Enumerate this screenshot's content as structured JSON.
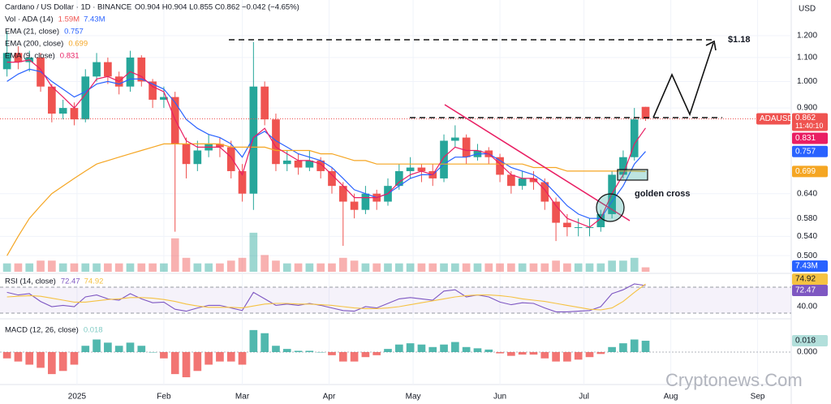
{
  "header": {
    "symbol": "Cardano / US Dollar · 1D · BINANCE",
    "ohlc": "O0.904 H0.904 L0.855 C0.862 −0.042 (−4.65%)",
    "currency": "USD",
    "ticker": "ADAUSD",
    "countdown": "11:40:10",
    "watermark": "Cryptonews.Com",
    "annotations": [
      "$1.18",
      "golden cross"
    ]
  },
  "chart_data": [
    {
      "type": "candlestick",
      "log_scale": true,
      "up_color": "#26a69a",
      "down_color": "#ef5350",
      "x": [
        6,
        10,
        14,
        18,
        22,
        26,
        30,
        34,
        38,
        42,
        46,
        50,
        54,
        58,
        62,
        66,
        70,
        74,
        78,
        82,
        86,
        90,
        94,
        98,
        102,
        106,
        110,
        114,
        118,
        122,
        126,
        130,
        134,
        138,
        142,
        146,
        150,
        154,
        158,
        162,
        166,
        170,
        174,
        178,
        182,
        186,
        190,
        194,
        198,
        202,
        206,
        210,
        214,
        218,
        222,
        226,
        230,
        234
      ],
      "open": [
        1.05,
        1.12,
        1.08,
        1.1,
        0.98,
        0.88,
        0.9,
        0.86,
        1.02,
        1.08,
        1.02,
        0.98,
        1.1,
        1.0,
        0.93,
        0.94,
        0.78,
        0.72,
        0.76,
        0.78,
        0.77,
        0.7,
        0.64,
        0.98,
        0.86,
        0.72,
        0.73,
        0.71,
        0.73,
        0.7,
        0.66,
        0.62,
        0.6,
        0.64,
        0.62,
        0.66,
        0.7,
        0.71,
        0.7,
        0.68,
        0.79,
        0.8,
        0.74,
        0.76,
        0.74,
        0.69,
        0.66,
        0.68,
        0.67,
        0.62,
        0.57,
        0.56,
        0.56,
        0.56,
        0.59,
        0.69,
        0.74,
        0.904
      ],
      "high": [
        1.22,
        1.15,
        1.13,
        1.12,
        0.99,
        0.93,
        0.92,
        1.05,
        1.12,
        1.1,
        1.04,
        1.13,
        1.11,
        1.01,
        0.98,
        0.96,
        0.8,
        0.79,
        0.81,
        0.8,
        0.79,
        0.72,
        1.17,
        1.0,
        0.88,
        0.76,
        0.75,
        0.76,
        0.74,
        0.71,
        0.67,
        0.64,
        0.66,
        0.65,
        0.68,
        0.72,
        0.74,
        0.72,
        0.72,
        0.81,
        0.84,
        0.81,
        0.78,
        0.77,
        0.75,
        0.7,
        0.7,
        0.7,
        0.68,
        0.63,
        0.59,
        0.58,
        0.58,
        0.6,
        0.7,
        0.76,
        0.9,
        0.904
      ],
      "low": [
        1.02,
        1.05,
        1.04,
        0.96,
        0.85,
        0.86,
        0.84,
        0.85,
        1.0,
        0.99,
        0.95,
        0.96,
        0.98,
        0.9,
        0.9,
        0.55,
        0.68,
        0.7,
        0.74,
        0.74,
        0.68,
        0.62,
        0.6,
        0.84,
        0.7,
        0.7,
        0.69,
        0.7,
        0.68,
        0.64,
        0.52,
        0.58,
        0.59,
        0.6,
        0.61,
        0.65,
        0.68,
        0.67,
        0.66,
        0.67,
        0.77,
        0.72,
        0.73,
        0.72,
        0.67,
        0.64,
        0.65,
        0.65,
        0.6,
        0.53,
        0.54,
        0.54,
        0.54,
        0.55,
        0.58,
        0.68,
        0.73,
        0.855
      ],
      "close": [
        1.12,
        1.08,
        1.1,
        0.98,
        0.88,
        0.9,
        0.86,
        1.02,
        1.08,
        1.02,
        0.98,
        1.1,
        1.0,
        0.93,
        0.94,
        0.78,
        0.72,
        0.76,
        0.78,
        0.77,
        0.7,
        0.64,
        0.98,
        0.86,
        0.72,
        0.73,
        0.71,
        0.73,
        0.7,
        0.66,
        0.62,
        0.6,
        0.64,
        0.62,
        0.66,
        0.7,
        0.71,
        0.7,
        0.68,
        0.79,
        0.8,
        0.74,
        0.76,
        0.74,
        0.69,
        0.66,
        0.68,
        0.67,
        0.62,
        0.57,
        0.56,
        0.56,
        0.56,
        0.59,
        0.69,
        0.74,
        0.86,
        0.862
      ],
      "series": [
        {
          "name": "EMA (21, close)",
          "color": "#2962ff",
          "values": [
            1.0,
            1.03,
            1.05,
            1.04,
            1.0,
            0.97,
            0.94,
            0.96,
            0.99,
            1.0,
            0.99,
            1.01,
            1.01,
            0.99,
            0.97,
            0.92,
            0.86,
            0.83,
            0.81,
            0.8,
            0.78,
            0.74,
            0.8,
            0.82,
            0.79,
            0.77,
            0.75,
            0.74,
            0.73,
            0.71,
            0.68,
            0.65,
            0.64,
            0.63,
            0.64,
            0.66,
            0.68,
            0.69,
            0.69,
            0.72,
            0.74,
            0.74,
            0.75,
            0.75,
            0.73,
            0.71,
            0.7,
            0.69,
            0.67,
            0.64,
            0.61,
            0.59,
            0.58,
            0.58,
            0.62,
            0.66,
            0.72,
            0.757
          ]
        },
        {
          "name": "EMA (200, close)",
          "color": "#f5a623",
          "values": [
            0.5,
            0.54,
            0.58,
            0.61,
            0.64,
            0.66,
            0.68,
            0.7,
            0.72,
            0.73,
            0.74,
            0.75,
            0.76,
            0.77,
            0.78,
            0.78,
            0.78,
            0.78,
            0.78,
            0.78,
            0.77,
            0.77,
            0.77,
            0.77,
            0.76,
            0.76,
            0.76,
            0.76,
            0.75,
            0.75,
            0.74,
            0.73,
            0.73,
            0.72,
            0.72,
            0.72,
            0.72,
            0.72,
            0.72,
            0.72,
            0.72,
            0.72,
            0.72,
            0.72,
            0.72,
            0.72,
            0.72,
            0.71,
            0.71,
            0.71,
            0.7,
            0.7,
            0.7,
            0.7,
            0.7,
            0.7,
            0.7,
            0.699
          ]
        },
        {
          "name": "EMA (9, close)",
          "color": "#e91e63",
          "values": [
            1.08,
            1.08,
            1.09,
            1.05,
            0.98,
            0.94,
            0.9,
            0.95,
            1.01,
            1.02,
            1.0,
            1.04,
            1.02,
            0.98,
            0.96,
            0.86,
            0.79,
            0.77,
            0.77,
            0.77,
            0.74,
            0.69,
            0.8,
            0.83,
            0.77,
            0.75,
            0.73,
            0.73,
            0.72,
            0.69,
            0.66,
            0.63,
            0.63,
            0.63,
            0.64,
            0.67,
            0.69,
            0.7,
            0.69,
            0.74,
            0.77,
            0.76,
            0.76,
            0.75,
            0.72,
            0.69,
            0.68,
            0.68,
            0.65,
            0.61,
            0.58,
            0.57,
            0.56,
            0.58,
            0.64,
            0.69,
            0.78,
            0.831
          ]
        }
      ],
      "ylim": [
        0.469,
        1.383
      ],
      "yticks": [
        {
          "value": 1.2,
          "label": "1.200"
        },
        {
          "value": 1.1,
          "label": "1.100"
        },
        {
          "value": 1.0,
          "label": "1.000"
        },
        {
          "value": 0.9,
          "label": "0.900"
        },
        {
          "value": 0.64,
          "label": "0.640"
        },
        {
          "value": 0.58,
          "label": "0.580"
        },
        {
          "value": 0.54,
          "label": "0.540"
        },
        {
          "value": 0.5,
          "label": "0.500"
        }
      ],
      "xlim": [
        3.5,
        286
      ],
      "xticks": [
        {
          "value": 31,
          "label": "2025"
        },
        {
          "value": 62,
          "label": "Feb"
        },
        {
          "value": 90,
          "label": "Mar"
        },
        {
          "value": 121,
          "label": "Apr"
        },
        {
          "value": 151,
          "label": "May"
        },
        {
          "value": 182,
          "label": "Jun"
        },
        {
          "value": 212,
          "label": "Jul"
        },
        {
          "value": 243,
          "label": "Aug"
        },
        {
          "value": 274,
          "label": "Sep"
        }
      ]
    },
    {
      "type": "bar",
      "title": "Vol · ADA (14)",
      "last_label": "1.59M",
      "ma_label": "7.43M",
      "color": "#26a69a",
      "down_color": "#ef5350",
      "values": [
        3,
        3,
        3,
        4,
        4,
        3,
        3,
        3,
        3,
        3,
        3,
        3,
        3,
        3,
        3,
        12,
        5,
        3,
        3,
        3,
        4,
        5,
        14,
        6,
        4,
        3,
        3,
        3,
        3,
        3,
        5,
        4,
        3,
        3,
        3,
        3,
        3,
        3,
        3,
        3,
        3,
        3,
        3,
        3,
        3,
        3,
        3,
        3,
        3,
        4,
        3,
        3,
        3,
        3,
        4,
        4,
        5,
        1.59
      ],
      "ylim": [
        0,
        16
      ]
    },
    {
      "type": "line",
      "title": "RSI (14, close)",
      "bands": [
        30,
        70
      ],
      "series": [
        {
          "color": "#7e57c2",
          "values": [
            62,
            58,
            60,
            48,
            40,
            42,
            40,
            55,
            58,
            52,
            50,
            60,
            52,
            46,
            47,
            36,
            33,
            38,
            42,
            42,
            38,
            34,
            62,
            52,
            42,
            44,
            42,
            45,
            42,
            38,
            34,
            33,
            40,
            38,
            45,
            52,
            54,
            52,
            50,
            64,
            66,
            55,
            58,
            55,
            47,
            43,
            46,
            45,
            38,
            32,
            32,
            33,
            34,
            40,
            60,
            66,
            75,
            72.47
          ]
        },
        {
          "color": "#f5c242",
          "values": [
            55,
            56,
            57,
            56,
            53,
            50,
            47,
            47,
            49,
            51,
            52,
            54,
            54,
            53,
            51,
            48,
            44,
            41,
            39,
            39,
            39,
            38,
            41,
            44,
            45,
            45,
            44,
            44,
            43,
            42,
            40,
            38,
            37,
            37,
            38,
            40,
            43,
            46,
            49,
            52,
            55,
            57,
            58,
            58,
            57,
            55,
            52,
            50,
            48,
            45,
            42,
            39,
            36,
            35,
            38,
            48,
            62,
            74.92
          ]
        }
      ],
      "ylim": [
        22.5,
        87.5
      ],
      "yticks": [
        {
          "value": 40,
          "label": "40.00"
        }
      ]
    },
    {
      "type": "histogram",
      "title": "MACD (12, 26, close)",
      "color": "#26a69a",
      "down_color": "#ef5350",
      "values": [
        -0.01,
        -0.015,
        -0.02,
        -0.025,
        -0.035,
        -0.03,
        -0.02,
        0.01,
        0.02,
        0.015,
        0.01,
        0.015,
        0.01,
        0,
        -0.01,
        -0.035,
        -0.04,
        -0.03,
        -0.02,
        -0.015,
        -0.015,
        -0.02,
        0.035,
        0.03,
        0.01,
        0.005,
        0.002,
        0.002,
        0,
        -0.005,
        -0.015,
        -0.015,
        -0.008,
        -0.005,
        0.005,
        0.012,
        0.014,
        0.012,
        0.008,
        0.012,
        0.016,
        0.008,
        0.006,
        0.004,
        -0.002,
        -0.006,
        -0.004,
        -0.004,
        -0.01,
        -0.015,
        -0.015,
        -0.012,
        -0.008,
        -0.003,
        0.008,
        0.014,
        0.02,
        0.018
      ],
      "ylim": [
        -0.049,
        0.049
      ],
      "yticks": [
        {
          "value": 0,
          "label": "0.000"
        }
      ]
    }
  ]
}
